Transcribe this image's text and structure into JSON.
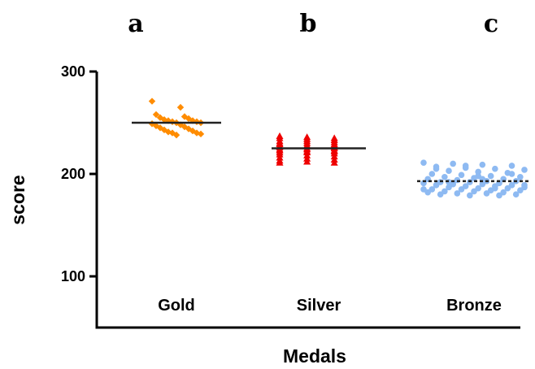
{
  "chart_data": {
    "type": "scatter",
    "xlabel": "Medals",
    "ylabel": "score",
    "ylim": [
      50,
      300
    ],
    "yticks": [
      100,
      200,
      300
    ],
    "grid": false,
    "categories": [
      "Gold",
      "Silver",
      "Bronze"
    ],
    "significance_letters": [
      "a",
      "b",
      "c"
    ],
    "series": [
      {
        "name": "Gold",
        "color": "#FF8C00",
        "marker": "diamond",
        "mean": 250,
        "values": [
          271,
          265,
          258,
          256,
          255,
          254,
          253,
          252,
          252,
          251,
          251,
          250,
          250,
          249,
          248,
          247,
          246,
          245,
          244,
          243,
          242,
          241,
          240,
          240,
          239,
          238
        ]
      },
      {
        "name": "Silver",
        "color": "#EE0000",
        "marker": "triangle",
        "mean": 225,
        "values": [
          237,
          236,
          235,
          235,
          234,
          233,
          232,
          232,
          231,
          230,
          230,
          229,
          229,
          228,
          228,
          227,
          227,
          226,
          226,
          225,
          225,
          224,
          224,
          223,
          223,
          222,
          222,
          221,
          221,
          220,
          219,
          218,
          217,
          216,
          215,
          214,
          213,
          212,
          211,
          211
        ]
      },
      {
        "name": "Bronze",
        "color": "#8EBAF2",
        "marker": "circle",
        "mean": 193,
        "values": [
          211,
          210,
          209,
          208,
          207,
          206,
          205,
          204,
          203,
          202,
          201,
          200,
          199,
          198,
          197,
          197,
          196,
          195,
          195,
          194,
          193,
          193,
          192,
          192,
          191,
          191,
          190,
          190,
          189,
          189,
          188,
          188,
          187,
          187,
          186,
          186,
          185,
          185,
          184,
          184,
          183,
          183,
          182,
          182,
          181,
          181,
          180,
          180,
          179,
          179,
          185,
          190,
          195,
          200,
          205,
          208,
          186,
          189,
          192,
          198
        ]
      }
    ]
  }
}
